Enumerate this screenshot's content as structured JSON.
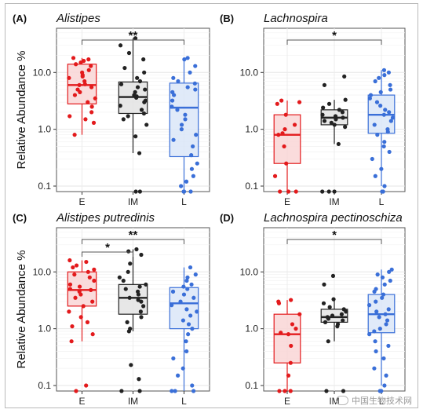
{
  "chart_data": [
    {
      "type": "box",
      "panel_label": "(A)",
      "title": "Alistipes",
      "ylabel": "Relative Abundance %",
      "xlabel": "",
      "y_scale": "log10",
      "ylim": [
        0.08,
        60
      ],
      "y_ticks": [
        0.1,
        1.0,
        10.0
      ],
      "y_tick_labels": [
        "0.1",
        "1.0",
        "10.0"
      ],
      "categories": [
        "E",
        "IM",
        "L"
      ],
      "grid": true,
      "boxes": [
        {
          "group": "E",
          "q1": 2.8,
          "median": 6.0,
          "q3": 14.0,
          "whisker_low": 0.8,
          "whisker_high": 18.0,
          "points": [
            18,
            17,
            16,
            15,
            14,
            13,
            11,
            10,
            9,
            8.5,
            8,
            7,
            6.2,
            6,
            5.5,
            5,
            4.5,
            4,
            3.5,
            3,
            2.5,
            2,
            1.7,
            1.5,
            1.3,
            0.8
          ]
        },
        {
          "group": "IM",
          "q1": 1.9,
          "median": 3.7,
          "q3": 6.8,
          "whisker_low": 0.38,
          "whisker_high": 40.0,
          "points": [
            40,
            30,
            22,
            17,
            12,
            10,
            8,
            7,
            6.2,
            5.5,
            5,
            4.5,
            4,
            3.8,
            3.6,
            3.2,
            3,
            2.6,
            2.2,
            1.9,
            1.7,
            1.5,
            1.2,
            0.75,
            0.38,
            0.08,
            0.08
          ]
        },
        {
          "group": "L",
          "q1": 0.33,
          "median": 2.4,
          "q3": 6.5,
          "whisker_low": 0.08,
          "whisker_high": 18.0,
          "points": [
            18,
            17,
            13,
            10,
            8,
            7,
            6.4,
            5.5,
            5,
            4.5,
            4,
            3.2,
            2.5,
            2.2,
            1.8,
            1.5,
            1.2,
            1,
            0.8,
            0.65,
            0.5,
            0.35,
            0.25,
            0.2,
            0.15,
            0.12,
            0.1,
            0.08,
            0.08,
            0.08
          ]
        }
      ],
      "comparisons": [
        {
          "from": "E",
          "to": "L",
          "label": "**"
        }
      ]
    },
    {
      "type": "box",
      "panel_label": "(B)",
      "title": "Lachnospira",
      "ylabel": "",
      "xlabel": "",
      "y_scale": "log10",
      "ylim": [
        0.08,
        60
      ],
      "y_ticks": [
        0.1,
        1.0,
        10.0
      ],
      "y_tick_labels": [
        "0.1",
        "1.0",
        "10.0"
      ],
      "categories": [
        "E",
        "IM",
        "L"
      ],
      "grid": true,
      "boxes": [
        {
          "group": "E",
          "q1": 0.25,
          "median": 0.8,
          "q3": 1.8,
          "whisker_low": 0.08,
          "whisker_high": 3.2,
          "points": [
            3.2,
            3,
            2.8,
            1.8,
            1.2,
            1,
            0.85,
            0.8,
            0.5,
            0.25,
            0.15,
            0.08,
            0.08,
            0.08
          ]
        },
        {
          "group": "IM",
          "q1": 1.2,
          "median": 1.6,
          "q3": 2.2,
          "whisker_low": 0.55,
          "whisker_high": 3.3,
          "points": [
            8.5,
            6,
            3.3,
            2.8,
            2.4,
            2.2,
            2,
            1.8,
            1.7,
            1.6,
            1.5,
            1.4,
            1.3,
            1.2,
            1.1,
            0.55,
            0.08,
            0.08,
            0.08
          ]
        },
        {
          "group": "L",
          "q1": 0.85,
          "median": 1.8,
          "q3": 4.0,
          "whisker_low": 0.1,
          "whisker_high": 11.0,
          "points": [
            11,
            10,
            9,
            8,
            7,
            6,
            5,
            4.5,
            4,
            3.5,
            3,
            2.6,
            2.2,
            2,
            1.8,
            1.6,
            1.4,
            1.2,
            1,
            0.9,
            0.8,
            0.6,
            0.5,
            0.4,
            0.3,
            0.2,
            0.15,
            0.1,
            0.08,
            0.08
          ]
        }
      ],
      "comparisons": [
        {
          "from": "E",
          "to": "L",
          "label": "*"
        }
      ]
    },
    {
      "type": "box",
      "panel_label": "(C)",
      "title": "Alistipes putredinis",
      "ylabel": "Relative Abundance %",
      "xlabel": "",
      "y_scale": "log10",
      "ylim": [
        0.08,
        60
      ],
      "y_ticks": [
        0.1,
        1.0,
        10.0
      ],
      "y_tick_labels": [
        "0.1",
        "1.0",
        "10.0"
      ],
      "categories": [
        "E",
        "IM",
        "L"
      ],
      "grid": true,
      "boxes": [
        {
          "group": "E",
          "q1": 2.5,
          "median": 4.8,
          "q3": 10.0,
          "whisker_low": 0.6,
          "whisker_high": 16.0,
          "points": [
            16,
            15,
            13,
            12,
            11,
            10,
            9,
            8,
            7,
            6,
            5.5,
            5,
            4.8,
            4.5,
            4,
            3.5,
            3,
            2.5,
            2,
            1.6,
            1.3,
            1.1,
            0.8,
            0.6,
            0.1,
            0.08
          ]
        },
        {
          "group": "IM",
          "q1": 1.8,
          "median": 3.5,
          "q3": 6.0,
          "whisker_low": 0.9,
          "whisker_high": 25.0,
          "points": [
            25,
            23,
            20,
            14,
            10,
            8,
            7,
            6,
            5.5,
            5,
            4.5,
            4,
            3.5,
            3.2,
            3,
            2.5,
            2,
            1.6,
            1.3,
            1,
            0.9,
            0.23,
            0.13,
            0.08,
            0.08
          ]
        },
        {
          "group": "L",
          "q1": 1.0,
          "median": 2.8,
          "q3": 5.3,
          "whisker_low": 0.08,
          "whisker_high": 12.0,
          "points": [
            12,
            9,
            8,
            7,
            6,
            5.5,
            5,
            4.5,
            4,
            3.5,
            3,
            2.6,
            2.2,
            2,
            1.7,
            1.4,
            1.2,
            1,
            0.8,
            0.6,
            0.4,
            0.3,
            0.2,
            0.15,
            0.1,
            0.08,
            0.08,
            0.08
          ]
        }
      ],
      "comparisons": [
        {
          "from": "E",
          "to": "IM",
          "label": "*"
        },
        {
          "from": "E",
          "to": "L",
          "label": "**"
        }
      ]
    },
    {
      "type": "box",
      "panel_label": "(D)",
      "title": "Lachnospira pectinoschiza",
      "ylabel": "",
      "xlabel": "",
      "y_scale": "log10",
      "ylim": [
        0.08,
        60
      ],
      "y_ticks": [
        0.1,
        1.0,
        10.0
      ],
      "y_tick_labels": [
        "0.1",
        "1.0",
        "10.0"
      ],
      "categories": [
        "E",
        "IM",
        "L"
      ],
      "grid": true,
      "boxes": [
        {
          "group": "E",
          "q1": 0.25,
          "median": 0.8,
          "q3": 1.8,
          "whisker_low": 0.08,
          "whisker_high": 3.2,
          "points": [
            3.2,
            3,
            2.8,
            1.8,
            1.2,
            1,
            0.85,
            0.8,
            0.5,
            0.25,
            0.15,
            0.08,
            0.08,
            0.08
          ]
        },
        {
          "group": "IM",
          "q1": 1.3,
          "median": 1.6,
          "q3": 2.2,
          "whisker_low": 0.6,
          "whisker_high": 3.3,
          "points": [
            8.5,
            6,
            3.3,
            2.8,
            2.4,
            2.2,
            2,
            1.8,
            1.7,
            1.6,
            1.5,
            1.4,
            1.3,
            1.2,
            1.1,
            0.6,
            0.08,
            0.08
          ]
        },
        {
          "group": "L",
          "q1": 0.85,
          "median": 1.8,
          "q3": 4.0,
          "whisker_low": 0.1,
          "whisker_high": 11.0,
          "points": [
            11,
            10,
            9,
            8,
            7,
            6,
            5,
            4.5,
            4,
            3.5,
            3,
            2.6,
            2.2,
            2,
            1.8,
            1.6,
            1.4,
            1.2,
            1,
            0.9,
            0.8,
            0.6,
            0.5,
            0.4,
            0.3,
            0.2,
            0.15,
            0.1,
            0.08,
            0.08
          ]
        }
      ],
      "comparisons": [
        {
          "from": "E",
          "to": "L",
          "label": "*"
        }
      ]
    }
  ],
  "colors": {
    "E": {
      "stroke": "#e31a1c",
      "fill": "#f9d6d6"
    },
    "IM": {
      "stroke": "#222222",
      "fill": "#e3e3e3"
    },
    "L": {
      "stroke": "#3a6fd8",
      "fill": "#dbe6f8"
    }
  },
  "watermark": {
    "text": "中国生物技术网",
    "icon": "wechat-icon"
  }
}
